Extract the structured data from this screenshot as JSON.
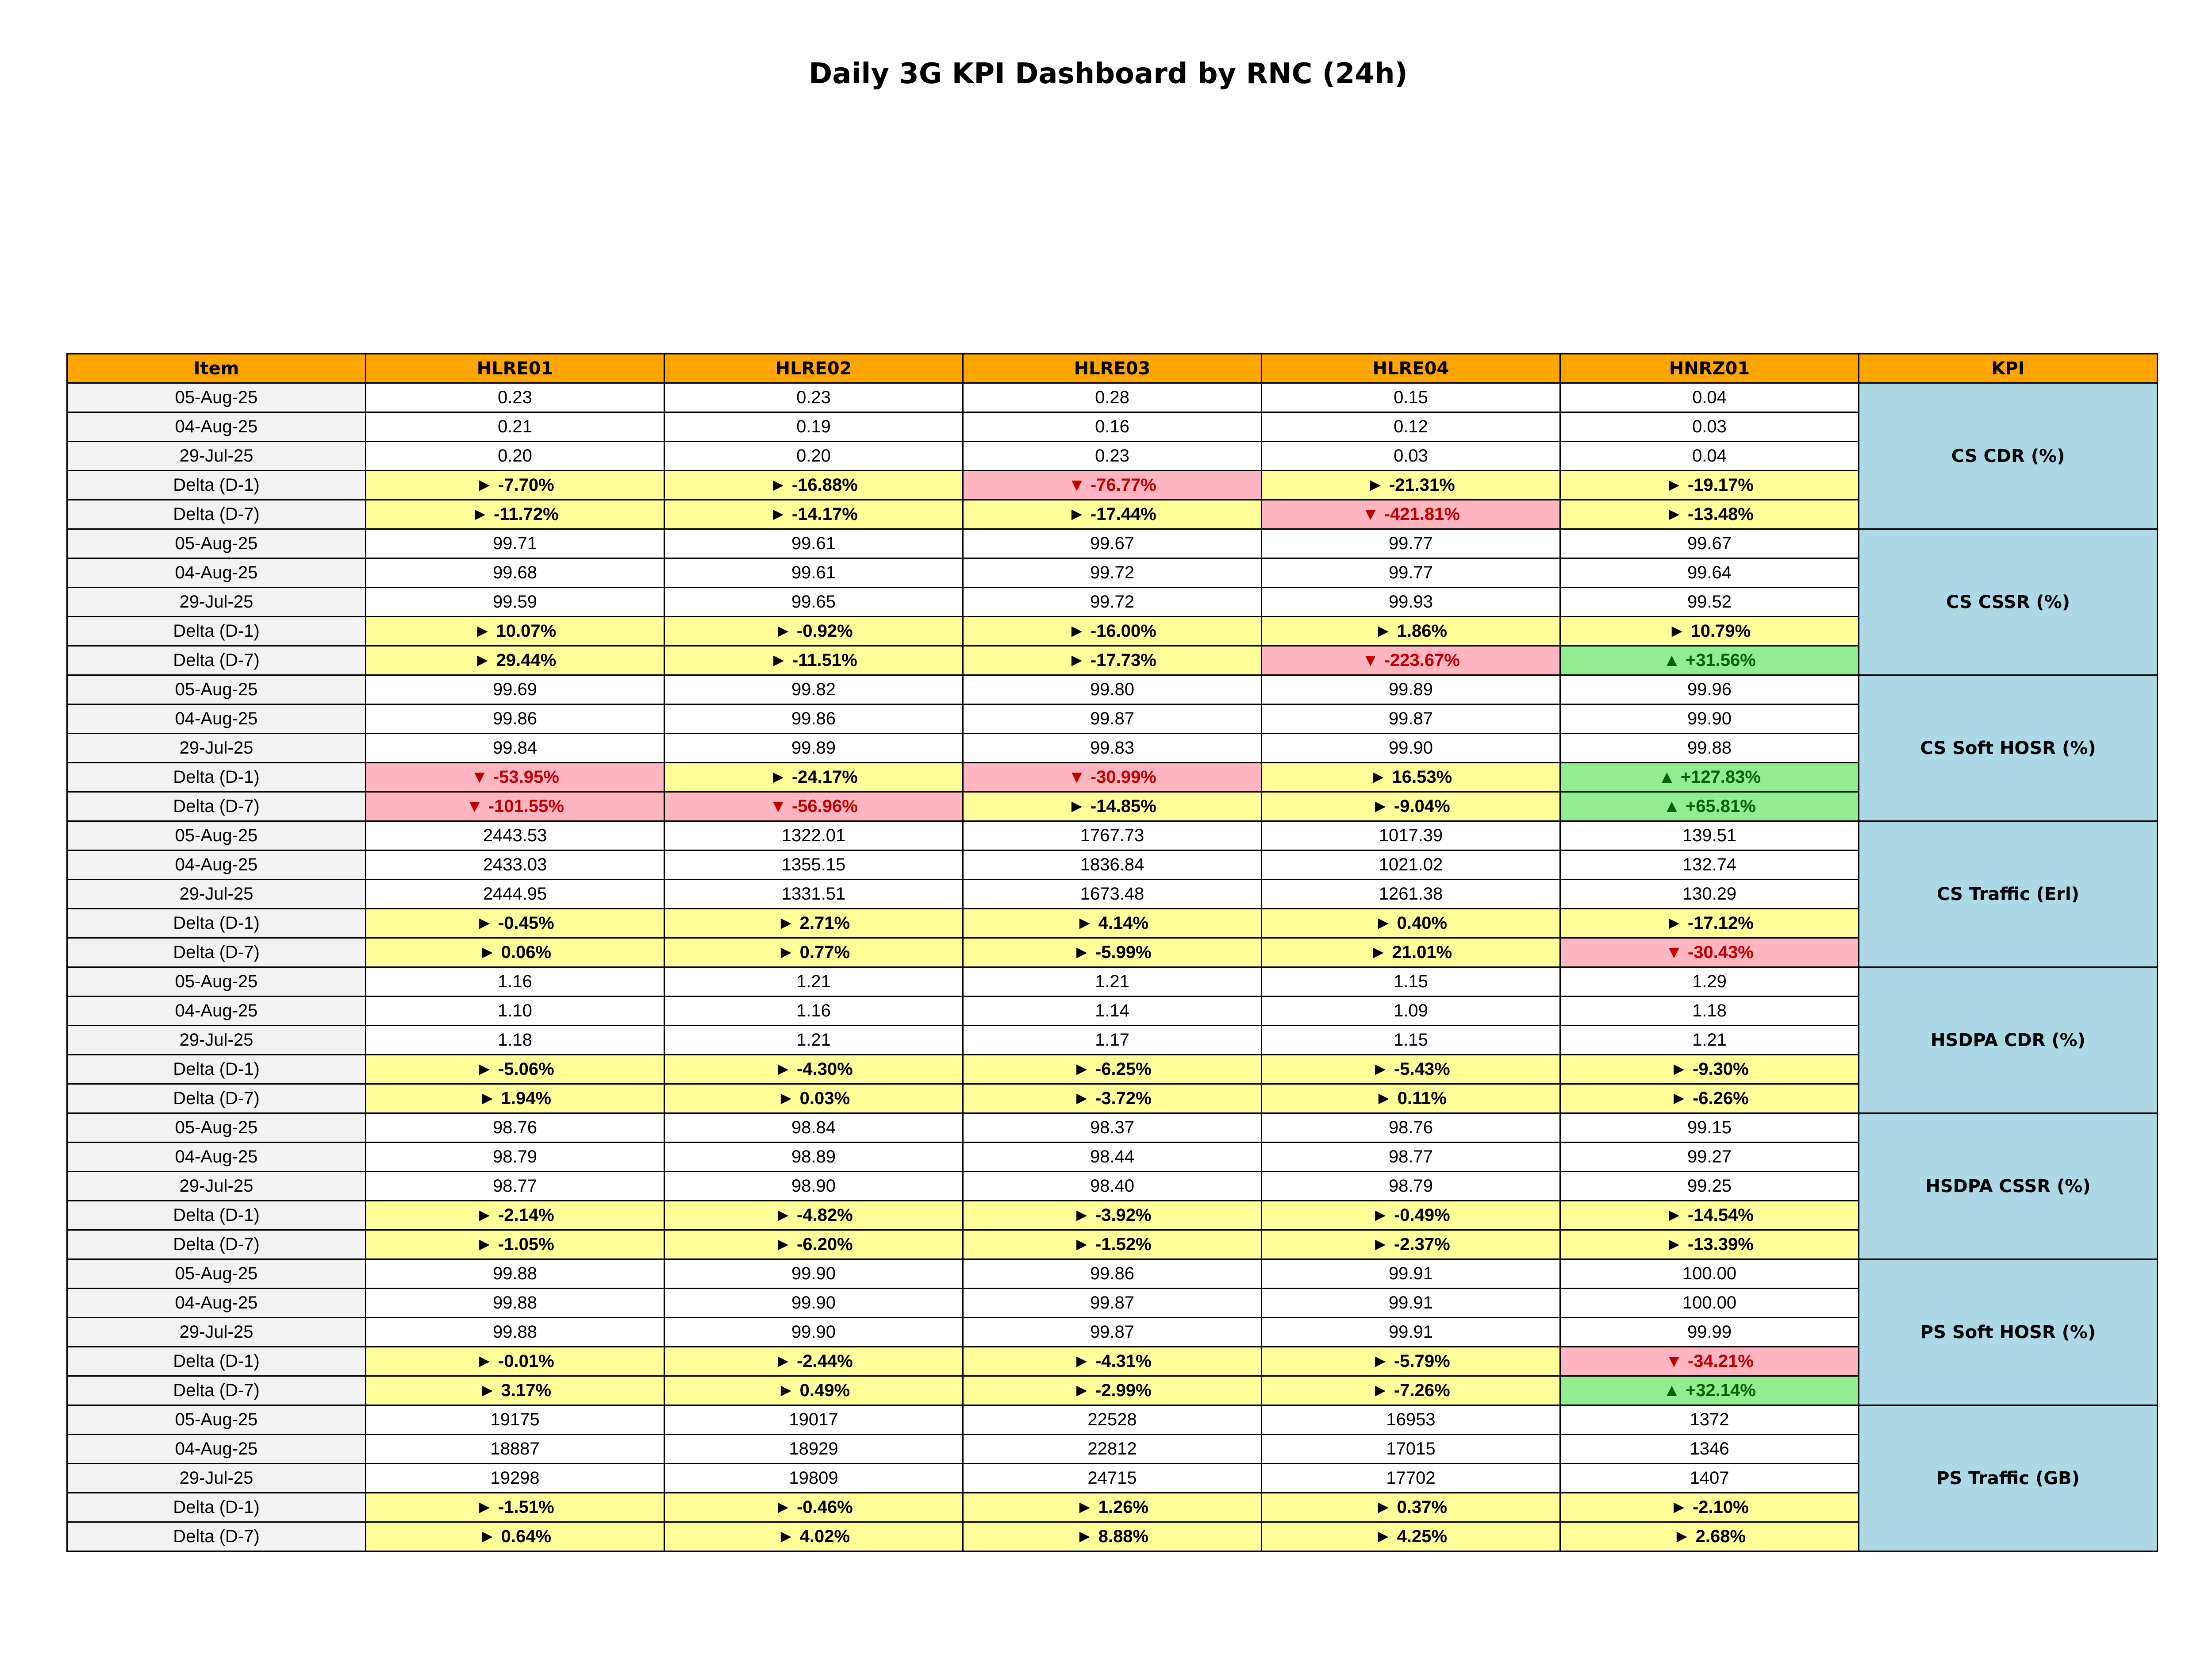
{
  "title": "Daily 3G KPI Dashboard by RNC (24h)",
  "colors": {
    "header": "#FFA500",
    "kpi_label": "#ADD8E6",
    "item_column": "#F2F2F2",
    "delta_flat": "#FFFF99",
    "delta_down": "#FFB6C1",
    "delta_up": "#90EE90"
  },
  "chart_data": {
    "type": "table",
    "columns": [
      "Item",
      "HLRE01",
      "HLRE02",
      "HLRE03",
      "HLRE04",
      "HNRZ01",
      "KPI"
    ],
    "kpis": [
      {
        "kpi": "CS CDR (%)",
        "rows": [
          {
            "item": "05-Aug-25",
            "values": [
              "0.23",
              "0.23",
              "0.28",
              "0.15",
              "0.04"
            ]
          },
          {
            "item": "04-Aug-25",
            "values": [
              "0.21",
              "0.19",
              "0.16",
              "0.12",
              "0.03"
            ]
          },
          {
            "item": "29-Jul-25",
            "values": [
              "0.20",
              "0.20",
              "0.23",
              "0.03",
              "0.04"
            ]
          },
          {
            "item": "Delta (D-1)",
            "values": [
              "► -7.70%",
              "► -16.88%",
              "▼ -76.77%",
              "► -21.31%",
              "► -19.17%"
            ],
            "status": [
              "flat",
              "flat",
              "down",
              "flat",
              "flat"
            ]
          },
          {
            "item": "Delta (D-7)",
            "values": [
              "► -11.72%",
              "► -14.17%",
              "► -17.44%",
              "▼ -421.81%",
              "► -13.48%"
            ],
            "status": [
              "flat",
              "flat",
              "flat",
              "down",
              "flat"
            ]
          }
        ]
      },
      {
        "kpi": "CS CSSR (%)",
        "rows": [
          {
            "item": "05-Aug-25",
            "values": [
              "99.71",
              "99.61",
              "99.67",
              "99.77",
              "99.67"
            ]
          },
          {
            "item": "04-Aug-25",
            "values": [
              "99.68",
              "99.61",
              "99.72",
              "99.77",
              "99.64"
            ]
          },
          {
            "item": "29-Jul-25",
            "values": [
              "99.59",
              "99.65",
              "99.72",
              "99.93",
              "99.52"
            ]
          },
          {
            "item": "Delta (D-1)",
            "values": [
              "► 10.07%",
              "► -0.92%",
              "► -16.00%",
              "► 1.86%",
              "► 10.79%"
            ],
            "status": [
              "flat",
              "flat",
              "flat",
              "flat",
              "flat"
            ]
          },
          {
            "item": "Delta (D-7)",
            "values": [
              "► 29.44%",
              "► -11.51%",
              "► -17.73%",
              "▼ -223.67%",
              "▲ +31.56%"
            ],
            "status": [
              "flat",
              "flat",
              "flat",
              "down",
              "up"
            ]
          }
        ]
      },
      {
        "kpi": "CS Soft HOSR (%)",
        "rows": [
          {
            "item": "05-Aug-25",
            "values": [
              "99.69",
              "99.82",
              "99.80",
              "99.89",
              "99.96"
            ]
          },
          {
            "item": "04-Aug-25",
            "values": [
              "99.86",
              "99.86",
              "99.87",
              "99.87",
              "99.90"
            ]
          },
          {
            "item": "29-Jul-25",
            "values": [
              "99.84",
              "99.89",
              "99.83",
              "99.90",
              "99.88"
            ]
          },
          {
            "item": "Delta (D-1)",
            "values": [
              "▼ -53.95%",
              "► -24.17%",
              "▼ -30.99%",
              "► 16.53%",
              "▲ +127.83%"
            ],
            "status": [
              "down",
              "flat",
              "down",
              "flat",
              "up"
            ]
          },
          {
            "item": "Delta (D-7)",
            "values": [
              "▼ -101.55%",
              "▼ -56.96%",
              "► -14.85%",
              "► -9.04%",
              "▲ +65.81%"
            ],
            "status": [
              "down",
              "down",
              "flat",
              "flat",
              "up"
            ]
          }
        ]
      },
      {
        "kpi": "CS Traffic (Erl)",
        "rows": [
          {
            "item": "05-Aug-25",
            "values": [
              "2443.53",
              "1322.01",
              "1767.73",
              "1017.39",
              "139.51"
            ]
          },
          {
            "item": "04-Aug-25",
            "values": [
              "2433.03",
              "1355.15",
              "1836.84",
              "1021.02",
              "132.74"
            ]
          },
          {
            "item": "29-Jul-25",
            "values": [
              "2444.95",
              "1331.51",
              "1673.48",
              "1261.38",
              "130.29"
            ]
          },
          {
            "item": "Delta (D-1)",
            "values": [
              "► -0.45%",
              "► 2.71%",
              "► 4.14%",
              "► 0.40%",
              "► -17.12%"
            ],
            "status": [
              "flat",
              "flat",
              "flat",
              "flat",
              "flat"
            ]
          },
          {
            "item": "Delta (D-7)",
            "values": [
              "► 0.06%",
              "► 0.77%",
              "► -5.99%",
              "► 21.01%",
              "▼ -30.43%"
            ],
            "status": [
              "flat",
              "flat",
              "flat",
              "flat",
              "down"
            ]
          }
        ]
      },
      {
        "kpi": "HSDPA CDR (%)",
        "rows": [
          {
            "item": "05-Aug-25",
            "values": [
              "1.16",
              "1.21",
              "1.21",
              "1.15",
              "1.29"
            ]
          },
          {
            "item": "04-Aug-25",
            "values": [
              "1.10",
              "1.16",
              "1.14",
              "1.09",
              "1.18"
            ]
          },
          {
            "item": "29-Jul-25",
            "values": [
              "1.18",
              "1.21",
              "1.17",
              "1.15",
              "1.21"
            ]
          },
          {
            "item": "Delta (D-1)",
            "values": [
              "► -5.06%",
              "► -4.30%",
              "► -6.25%",
              "► -5.43%",
              "► -9.30%"
            ],
            "status": [
              "flat",
              "flat",
              "flat",
              "flat",
              "flat"
            ]
          },
          {
            "item": "Delta (D-7)",
            "values": [
              "► 1.94%",
              "► 0.03%",
              "► -3.72%",
              "► 0.11%",
              "► -6.26%"
            ],
            "status": [
              "flat",
              "flat",
              "flat",
              "flat",
              "flat"
            ]
          }
        ]
      },
      {
        "kpi": "HSDPA CSSR (%)",
        "rows": [
          {
            "item": "05-Aug-25",
            "values": [
              "98.76",
              "98.84",
              "98.37",
              "98.76",
              "99.15"
            ]
          },
          {
            "item": "04-Aug-25",
            "values": [
              "98.79",
              "98.89",
              "98.44",
              "98.77",
              "99.27"
            ]
          },
          {
            "item": "29-Jul-25",
            "values": [
              "98.77",
              "98.90",
              "98.40",
              "98.79",
              "99.25"
            ]
          },
          {
            "item": "Delta (D-1)",
            "values": [
              "► -2.14%",
              "► -4.82%",
              "► -3.92%",
              "► -0.49%",
              "► -14.54%"
            ],
            "status": [
              "flat",
              "flat",
              "flat",
              "flat",
              "flat"
            ]
          },
          {
            "item": "Delta (D-7)",
            "values": [
              "► -1.05%",
              "► -6.20%",
              "► -1.52%",
              "► -2.37%",
              "► -13.39%"
            ],
            "status": [
              "flat",
              "flat",
              "flat",
              "flat",
              "flat"
            ]
          }
        ]
      },
      {
        "kpi": "PS Soft HOSR (%)",
        "rows": [
          {
            "item": "05-Aug-25",
            "values": [
              "99.88",
              "99.90",
              "99.86",
              "99.91",
              "100.00"
            ]
          },
          {
            "item": "04-Aug-25",
            "values": [
              "99.88",
              "99.90",
              "99.87",
              "99.91",
              "100.00"
            ]
          },
          {
            "item": "29-Jul-25",
            "values": [
              "99.88",
              "99.90",
              "99.87",
              "99.91",
              "99.99"
            ]
          },
          {
            "item": "Delta (D-1)",
            "values": [
              "► -0.01%",
              "► -2.44%",
              "► -4.31%",
              "► -5.79%",
              "▼ -34.21%"
            ],
            "status": [
              "flat",
              "flat",
              "flat",
              "flat",
              "down"
            ]
          },
          {
            "item": "Delta (D-7)",
            "values": [
              "► 3.17%",
              "► 0.49%",
              "► -2.99%",
              "► -7.26%",
              "▲ +32.14%"
            ],
            "status": [
              "flat",
              "flat",
              "flat",
              "flat",
              "up"
            ]
          }
        ]
      },
      {
        "kpi": "PS Traffic (GB)",
        "rows": [
          {
            "item": "05-Aug-25",
            "values": [
              "19175",
              "19017",
              "22528",
              "16953",
              "1372"
            ]
          },
          {
            "item": "04-Aug-25",
            "values": [
              "18887",
              "18929",
              "22812",
              "17015",
              "1346"
            ]
          },
          {
            "item": "29-Jul-25",
            "values": [
              "19298",
              "19809",
              "24715",
              "17702",
              "1407"
            ]
          },
          {
            "item": "Delta (D-1)",
            "values": [
              "► -1.51%",
              "► -0.46%",
              "► 1.26%",
              "► 0.37%",
              "► -2.10%"
            ],
            "status": [
              "flat",
              "flat",
              "flat",
              "flat",
              "flat"
            ]
          },
          {
            "item": "Delta (D-7)",
            "values": [
              "► 0.64%",
              "► 4.02%",
              "► 8.88%",
              "► 4.25%",
              "► 2.68%"
            ],
            "status": [
              "flat",
              "flat",
              "flat",
              "flat",
              "flat"
            ]
          }
        ]
      }
    ]
  }
}
